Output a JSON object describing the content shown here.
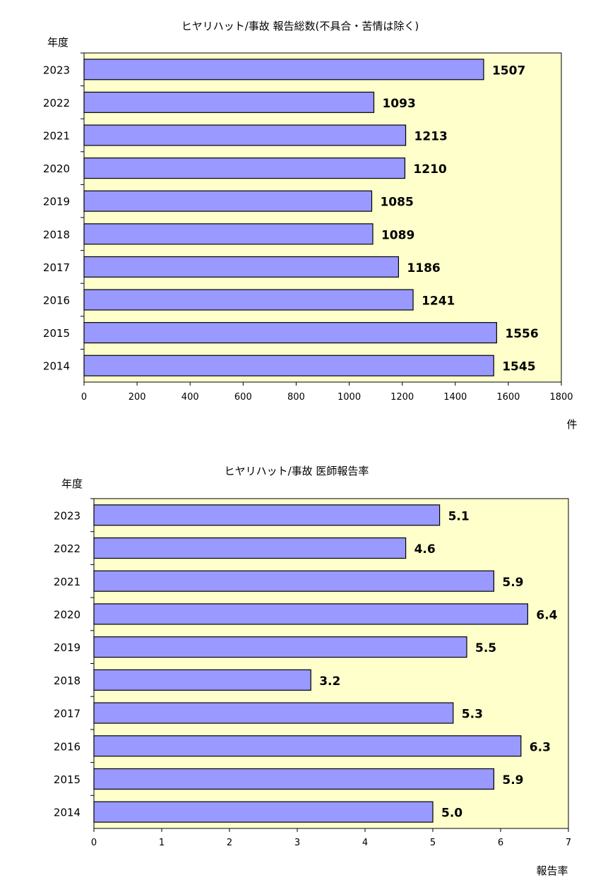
{
  "chart_data": [
    {
      "type": "bar",
      "orientation": "horizontal",
      "title": "ヒヤリハット/事故 報告総数(不具合・苦情は除く)",
      "ylabel": "年度",
      "xlabel": "件",
      "categories": [
        "2023",
        "2022",
        "2021",
        "2020",
        "2019",
        "2018",
        "2017",
        "2016",
        "2015",
        "2014"
      ],
      "values": [
        1507,
        1093,
        1213,
        1210,
        1085,
        1089,
        1186,
        1241,
        1556,
        1545
      ],
      "value_labels": [
        "1507",
        "1093",
        "1213",
        "1210",
        "1085",
        "1089",
        "1186",
        "1241",
        "1556",
        "1545"
      ],
      "xlim": [
        0,
        1800
      ],
      "xticks": [
        "0",
        "200",
        "400",
        "600",
        "800",
        "1000",
        "1200",
        "1400",
        "1600",
        "1800"
      ],
      "colors": {
        "bar": "#9999ff",
        "plot_bg": "#ffffcc",
        "border": "#000000"
      },
      "grid": false,
      "legend": "none"
    },
    {
      "type": "bar",
      "orientation": "horizontal",
      "title": "ヒヤリハット/事故 医師報告率",
      "ylabel": "年度",
      "xlabel": "報告率",
      "categories": [
        "2023",
        "2022",
        "2021",
        "2020",
        "2019",
        "2018",
        "2017",
        "2016",
        "2015",
        "2014"
      ],
      "values": [
        5.1,
        4.6,
        5.9,
        6.4,
        5.5,
        3.2,
        5.3,
        6.3,
        5.9,
        5.0
      ],
      "value_labels": [
        "5.1",
        "4.6",
        "5.9",
        "6.4",
        "5.5",
        "3.2",
        "5.3",
        "6.3",
        "5.9",
        "5.0"
      ],
      "xlim": [
        0,
        7
      ],
      "xticks": [
        "0",
        "1",
        "2",
        "3",
        "4",
        "5",
        "6",
        "7"
      ],
      "colors": {
        "bar": "#9999ff",
        "plot_bg": "#ffffcc",
        "border": "#000000"
      },
      "grid": false,
      "legend": "none"
    }
  ]
}
